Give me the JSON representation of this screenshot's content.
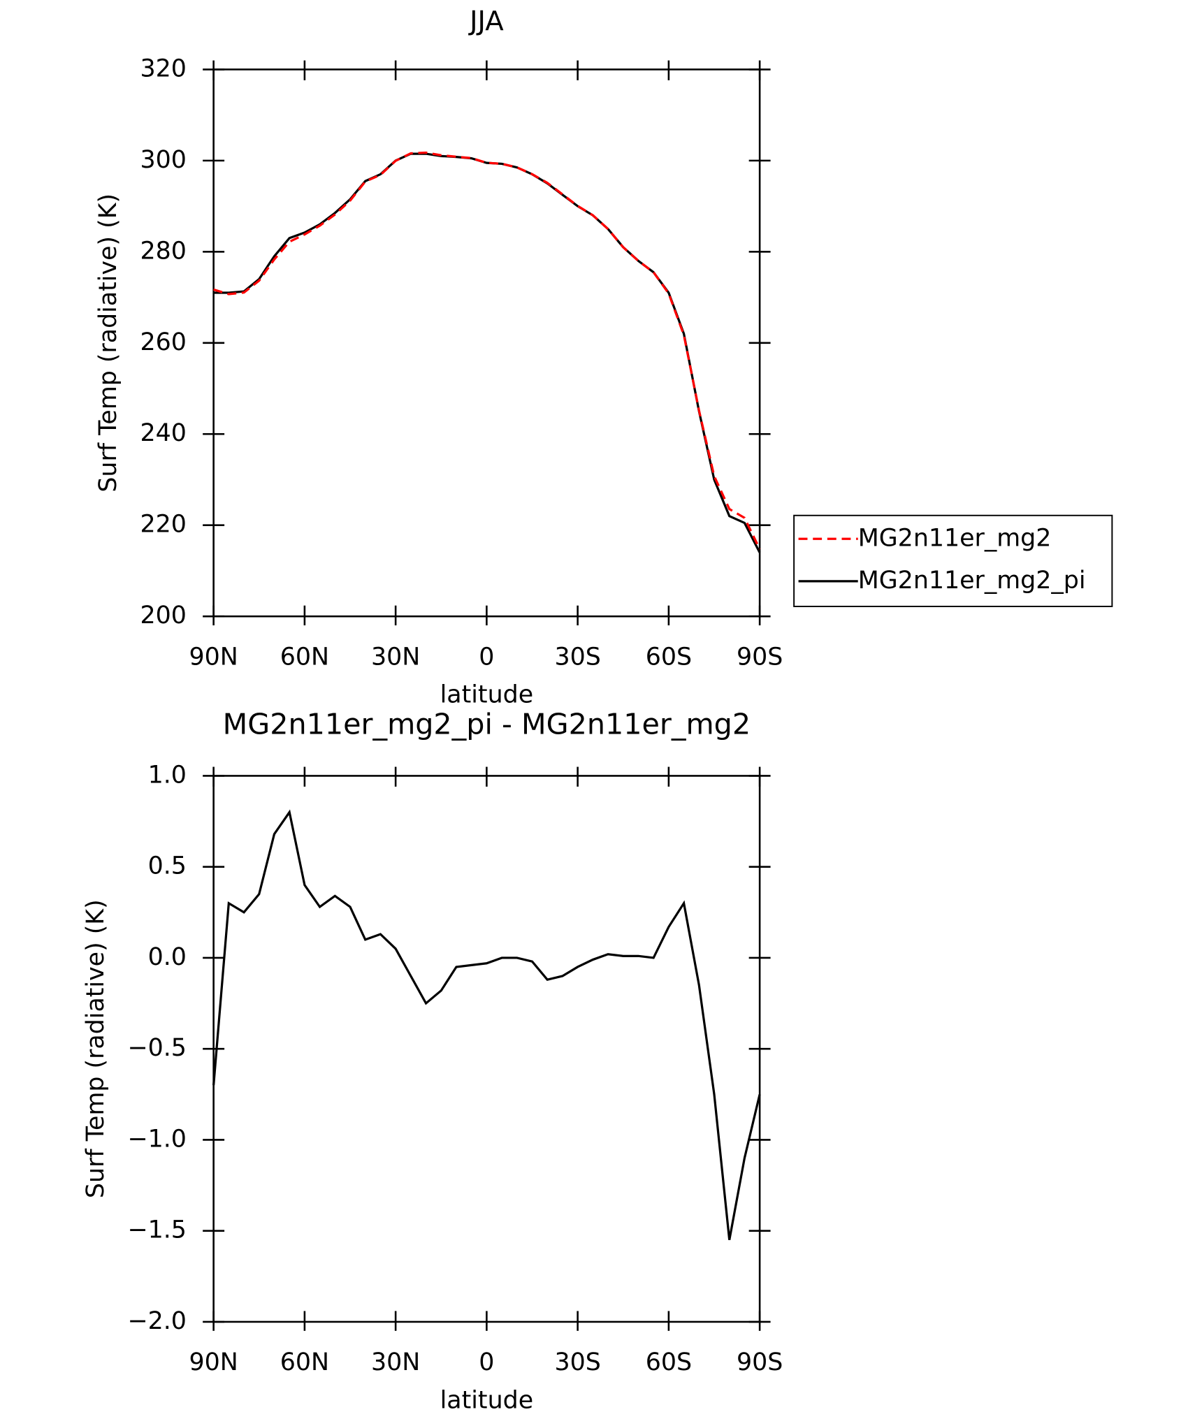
{
  "chart_data": [
    {
      "type": "line",
      "title": "JJA",
      "xlabel": "latitude",
      "ylabel": "Surf Temp (radiative) (K)",
      "x": [
        90,
        85,
        80,
        75,
        70,
        65,
        60,
        55,
        50,
        45,
        40,
        35,
        30,
        25,
        20,
        15,
        10,
        5,
        0,
        -5,
        -10,
        -15,
        -20,
        -25,
        -30,
        -35,
        -40,
        -45,
        -50,
        -55,
        -60,
        -65,
        -70,
        -75,
        -80,
        -85,
        -90
      ],
      "series": [
        {
          "name": "MG2n11er_mg2",
          "color": "#ff0000",
          "dashed": true,
          "values": [
            271.7,
            270.7,
            271.05,
            273.65,
            278.32,
            282.2,
            283.8,
            285.72,
            288.16,
            291.22,
            295.4,
            296.87,
            299.95,
            301.6,
            301.75,
            301.18,
            300.85,
            300.54,
            299.53,
            299.3,
            298.5,
            297.02,
            295.12,
            292.6,
            290.05,
            288.01,
            284.98,
            280.99,
            277.99,
            275.5,
            270.83,
            261.7,
            245.15,
            230.75,
            223.55,
            221.6,
            214.75
          ]
        },
        {
          "name": "MG2n11er_mg2_pi",
          "color": "#000000",
          "dashed": false,
          "values": [
            271,
            271,
            271.3,
            274,
            279,
            283,
            284.2,
            286,
            288.5,
            291.5,
            295.5,
            297,
            300,
            301.5,
            301.5,
            301,
            300.8,
            300.5,
            299.5,
            299.3,
            298.5,
            297,
            295,
            292.5,
            290,
            288,
            285,
            281,
            278,
            275.5,
            271,
            262,
            245,
            230,
            222,
            220.5,
            214
          ]
        }
      ],
      "xlim": [
        90,
        -90
      ],
      "xticks": [
        {
          "value": 90,
          "label": "90N"
        },
        {
          "value": 60,
          "label": "60N"
        },
        {
          "value": 30,
          "label": "30N"
        },
        0,
        {
          "value": -30,
          "label": "30S"
        },
        {
          "value": -60,
          "label": "60S"
        },
        {
          "value": -90,
          "label": "90S"
        }
      ],
      "ylim": [
        200,
        320
      ],
      "yticks": [
        200,
        220,
        240,
        260,
        280,
        300,
        320
      ],
      "legend": "right"
    },
    {
      "type": "line",
      "title": "MG2n11er_mg2_pi - MG2n11er_mg2",
      "xlabel": "latitude",
      "ylabel": "Surf Temp (radiative) (K)",
      "x": [
        90,
        85,
        80,
        75,
        70,
        65,
        60,
        55,
        50,
        45,
        40,
        35,
        30,
        25,
        20,
        15,
        10,
        5,
        0,
        -5,
        -10,
        -15,
        -20,
        -25,
        -30,
        -35,
        -40,
        -45,
        -50,
        -55,
        -60,
        -65,
        -70,
        -75,
        -80,
        -85,
        -90
      ],
      "values": [
        -0.7,
        0.3,
        0.25,
        0.35,
        0.68,
        0.8,
        0.4,
        0.28,
        0.34,
        0.28,
        0.1,
        0.13,
        0.05,
        -0.1,
        -0.25,
        -0.18,
        -0.05,
        -0.04,
        -0.03,
        0,
        0,
        -0.02,
        -0.12,
        -0.1,
        -0.05,
        -0.01,
        0.02,
        0.01,
        0.01,
        0,
        0.17,
        0.3,
        -0.15,
        -0.75,
        -1.55,
        -1.1,
        -0.75
      ],
      "color": "#000000",
      "xlim": [
        90,
        -90
      ],
      "xticks": [
        {
          "value": 90,
          "label": "90N"
        },
        {
          "value": 60,
          "label": "60N"
        },
        {
          "value": 30,
          "label": "30N"
        },
        0,
        {
          "value": -30,
          "label": "30S"
        },
        {
          "value": -60,
          "label": "60S"
        },
        {
          "value": -90,
          "label": "90S"
        }
      ],
      "ylim": [
        -2,
        1
      ],
      "yticks": [
        {
          "value": -2,
          "label": "−2.0"
        },
        {
          "value": -1.5,
          "label": "−1.5"
        },
        {
          "value": -1,
          "label": "−1.0"
        },
        {
          "value": -0.5,
          "label": "−0.5"
        },
        {
          "value": 0,
          "label": "0.0"
        },
        {
          "value": 0.5,
          "label": "0.5"
        },
        {
          "value": 1,
          "label": "1.0"
        }
      ]
    }
  ]
}
